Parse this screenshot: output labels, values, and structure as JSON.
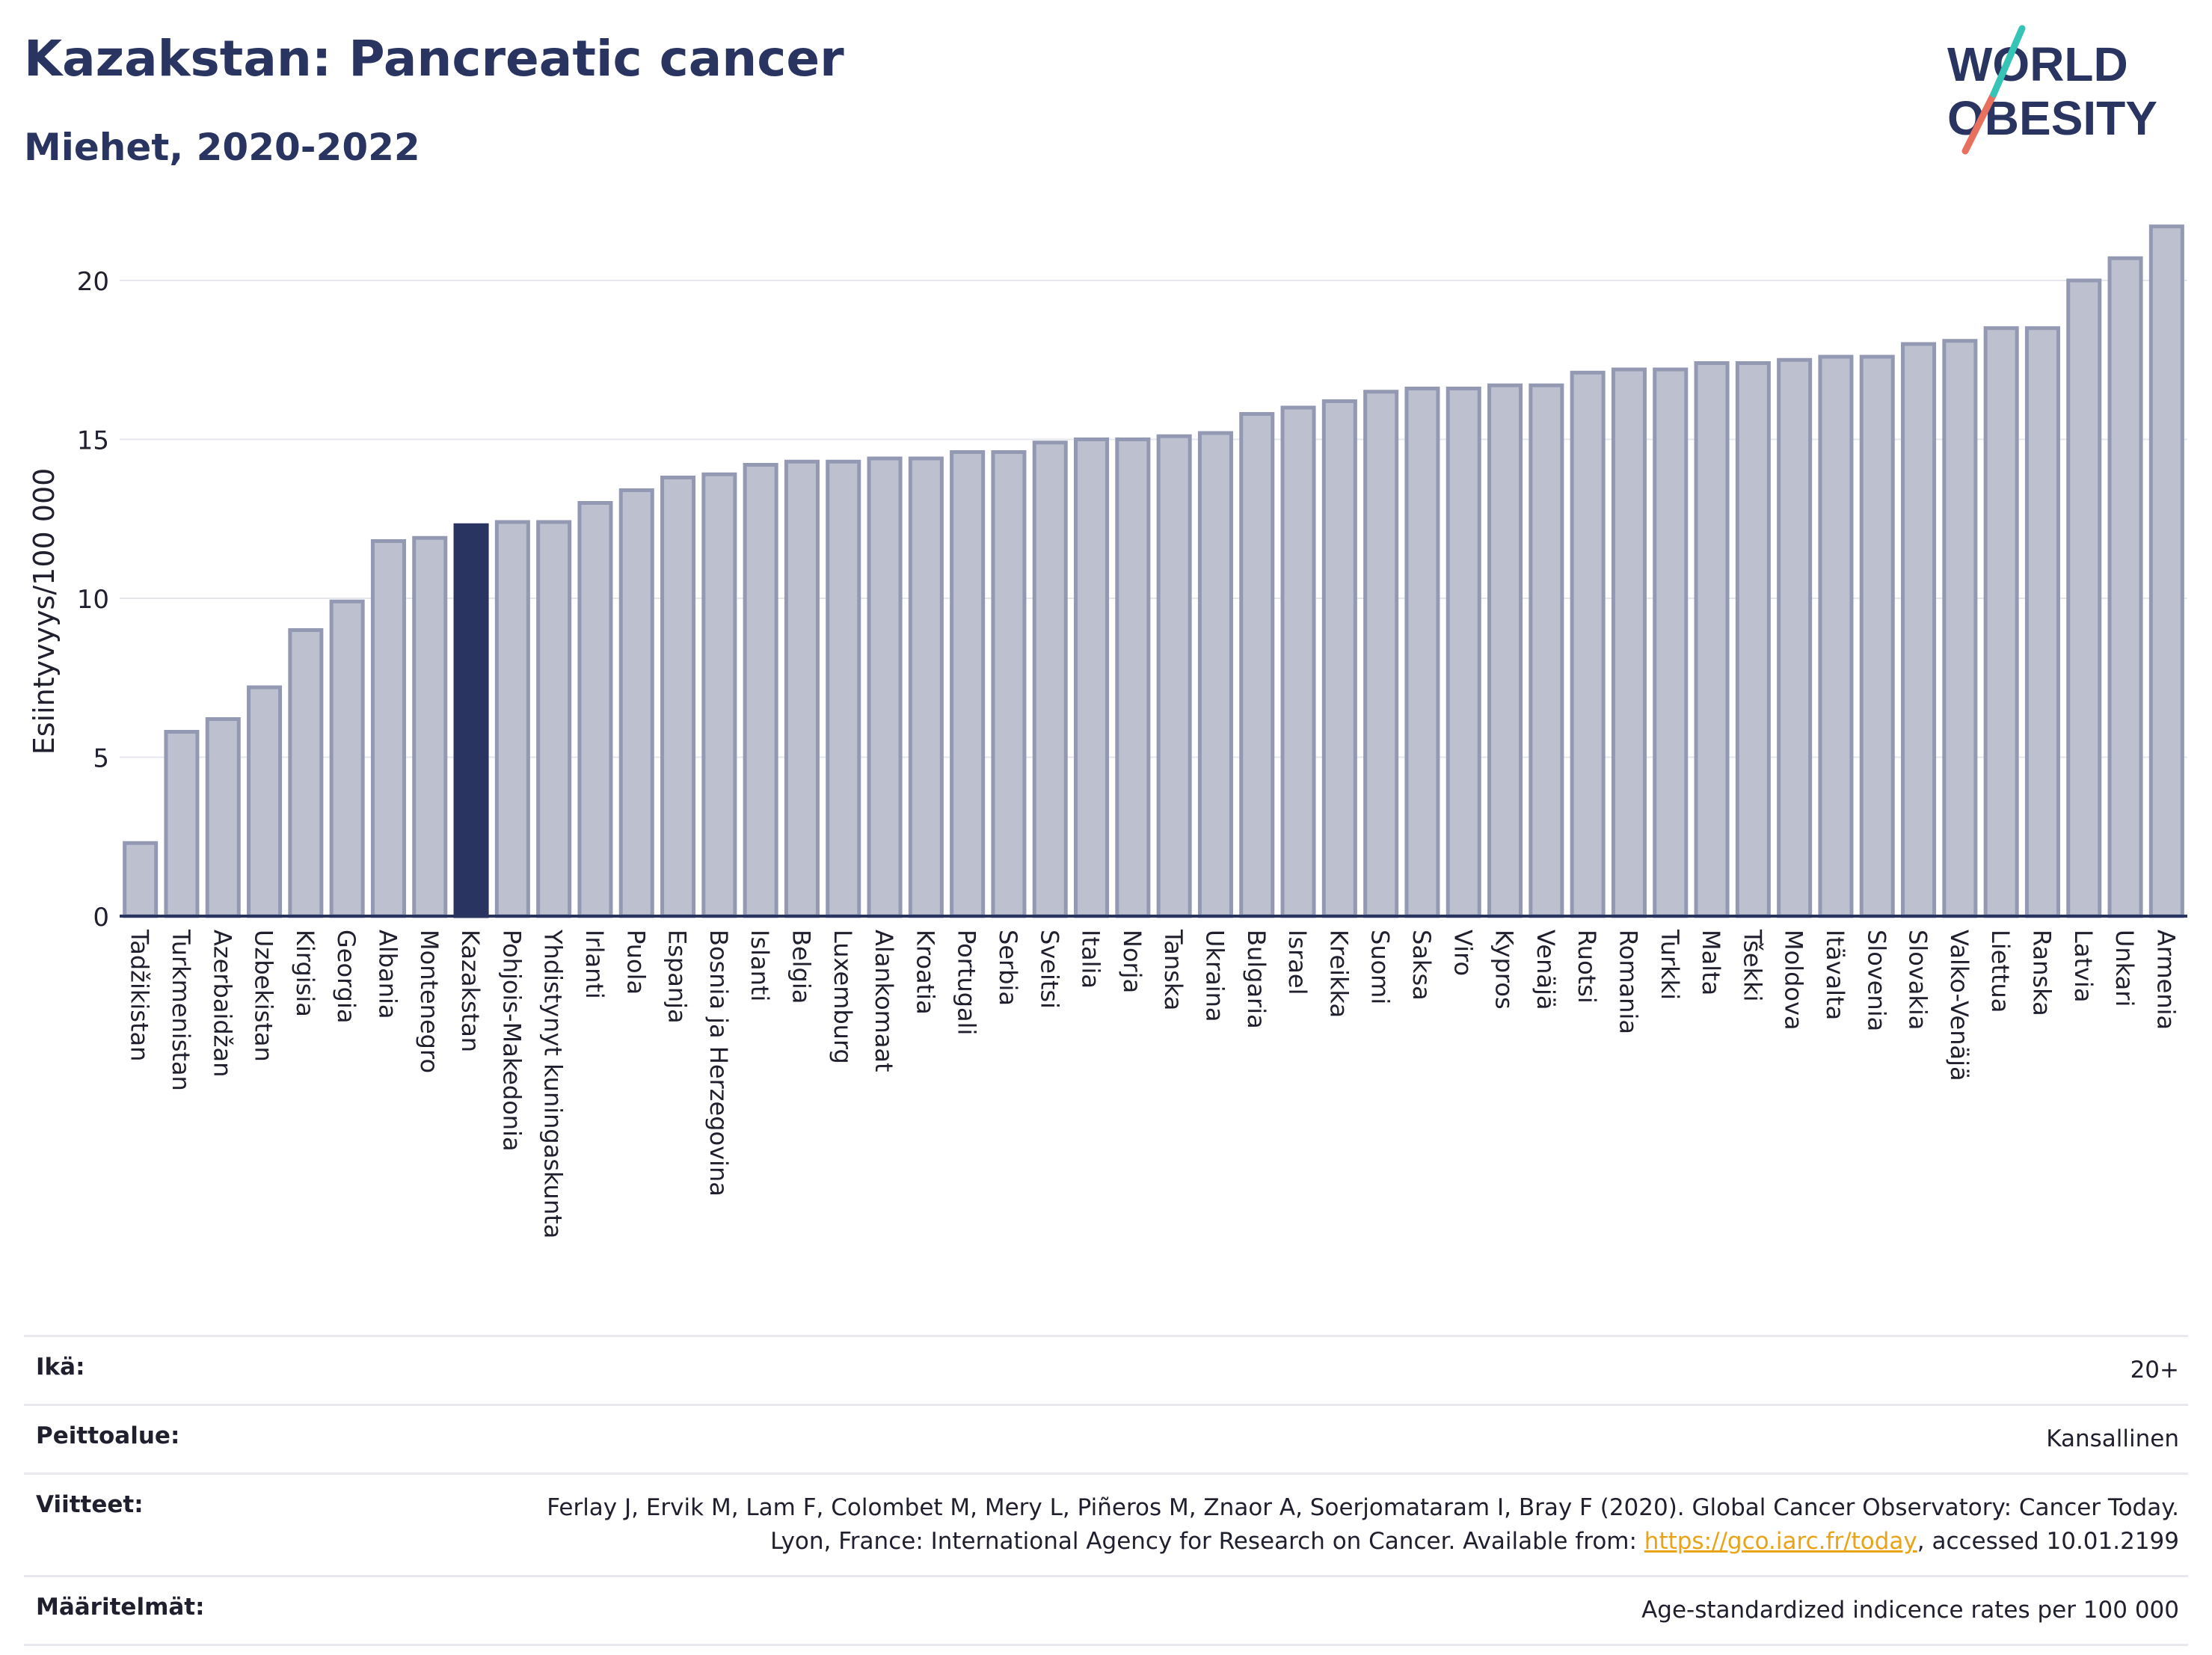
{
  "header": {
    "title": "Kazakstan: Pancreatic cancer",
    "subtitle": "Miehet, 2020-2022"
  },
  "logo": {
    "line1": "WORLD",
    "line2": "OBESITY",
    "text_color": "#2a3461",
    "slash_colors": [
      "#e8705f",
      "#35c4b5"
    ]
  },
  "colors": {
    "bar": "#bcc0cf",
    "bar_stroke": "#9399b2",
    "highlight": "#2a3461",
    "grid": "#e6e7ec",
    "axis": "#2a3461"
  },
  "chart_data": {
    "type": "bar",
    "ylabel": "Esiintyvyys/100 000",
    "ylim": [
      0,
      22
    ],
    "yticks": [
      0,
      5,
      10,
      15,
      20
    ],
    "grid": true,
    "highlight": "Kazakstan",
    "categories": [
      "Tadžikistan",
      "Turkmenistan",
      "Azerbaidžan",
      "Uzbekistan",
      "Kirgisia",
      "Georgia",
      "Albania",
      "Montenegro",
      "Kazakstan",
      "Pohjois-Makedonia",
      "Yhdistynyt kuningaskunta",
      "Irlanti",
      "Puola",
      "Espanja",
      "Bosnia ja Herzegovina",
      "Islanti",
      "Belgia",
      "Luxemburg",
      "Alankomaat",
      "Kroatia",
      "Portugali",
      "Serbia",
      "Sveitsi",
      "Italia",
      "Norja",
      "Tanska",
      "Ukraina",
      "Bulgaria",
      "Israel",
      "Kreikka",
      "Suomi",
      "Saksa",
      "Viro",
      "Kypros",
      "Venäjä",
      "Ruotsi",
      "Romania",
      "Turkki",
      "Malta",
      "Tšekki",
      "Moldova",
      "Itävalta",
      "Slovenia",
      "Slovakia",
      "Valko-Venäjä",
      "Liettua",
      "Ranska",
      "Latvia",
      "Unkari",
      "Armenia"
    ],
    "values": [
      2.3,
      5.8,
      6.2,
      7.2,
      9.0,
      9.9,
      11.8,
      11.9,
      12.3,
      12.4,
      12.4,
      13.0,
      13.4,
      13.8,
      13.9,
      14.2,
      14.3,
      14.3,
      14.4,
      14.4,
      14.6,
      14.6,
      14.9,
      15.0,
      15.0,
      15.1,
      15.2,
      15.8,
      16.0,
      16.2,
      16.5,
      16.6,
      16.6,
      16.7,
      16.7,
      17.1,
      17.2,
      17.2,
      17.4,
      17.4,
      17.5,
      17.6,
      17.6,
      18.0,
      18.1,
      18.5,
      18.5,
      20.0,
      20.7,
      21.7
    ]
  },
  "info": {
    "age_label": "Ikä:",
    "age_value": "20+",
    "coverage_label": "Peittoalue:",
    "coverage_value": "Kansallinen",
    "refs_label": "Viitteet:",
    "refs_text_1": "Ferlay J, Ervik M, Lam F, Colombet M, Mery L, Piñeros M, Znaor A, Soerjomataram I, Bray F (2020). Global Cancer Observatory: Cancer Today. Lyon, France: International Agency for Research on Cancer. Available from: ",
    "refs_link": "https://gco.iarc.fr/today",
    "refs_text_2": ", accessed 10.01.2199",
    "definitions_label": "Määritelmät:",
    "definitions_value": "Age-standardized indicence rates per 100 000"
  }
}
